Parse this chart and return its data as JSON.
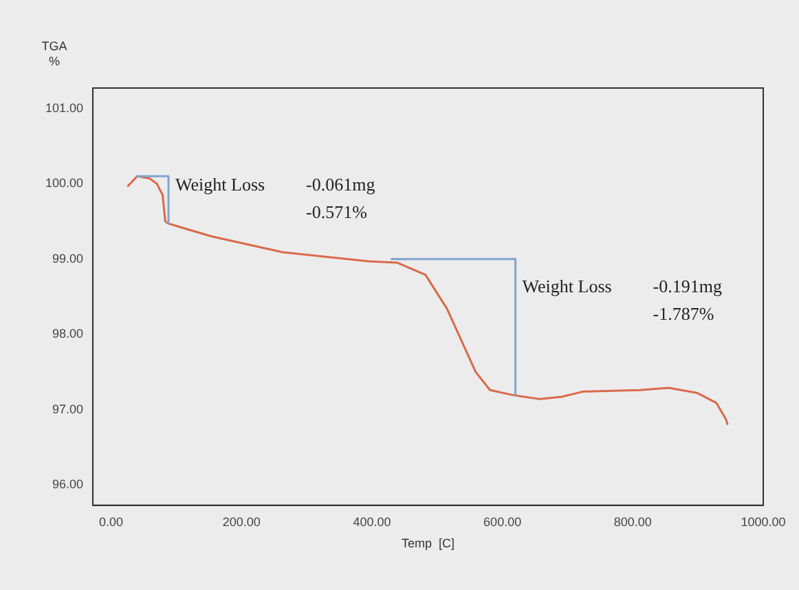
{
  "chart_data": {
    "type": "line",
    "xlabel": "Temp  [C]",
    "ylabel": "TGA\n%",
    "xlim": [
      -28,
      1000
    ],
    "ylim": [
      95.73,
      101.27
    ],
    "xticks": [
      {
        "value": 0,
        "label": "0.00"
      },
      {
        "value": 200,
        "label": "200.00"
      },
      {
        "value": 400,
        "label": "400.00"
      },
      {
        "value": 600,
        "label": "600.00"
      },
      {
        "value": 800,
        "label": "800.00"
      },
      {
        "value": 1000,
        "label": "1000.00"
      }
    ],
    "yticks": [
      {
        "value": 96,
        "label": "96.00"
      },
      {
        "value": 97,
        "label": "97.00"
      },
      {
        "value": 98,
        "label": "98.00"
      },
      {
        "value": 99,
        "label": "99.00"
      },
      {
        "value": 100,
        "label": "100.00"
      },
      {
        "value": 101,
        "label": "101.00"
      }
    ],
    "grid": false,
    "legend": false,
    "marker": "none",
    "line_style": "solid",
    "series": [
      {
        "color": "#7fa3cc",
        "x": [
          40,
          88,
          88
        ],
        "values": [
          100.1,
          100.1,
          99.47
        ]
      },
      {
        "color": "#7fa3cc",
        "x": [
          430,
          620,
          620
        ],
        "values": [
          99.0,
          99.0,
          97.19
        ]
      },
      {
        "color": "#d9694a",
        "x": [
          26,
          40,
          59,
          70,
          79,
          83,
          88,
          154,
          263,
          395,
          439,
          482,
          515,
          537,
          559,
          581,
          618,
          658,
          691,
          724,
          811,
          855,
          899,
          928,
          943,
          945
        ],
        "values": [
          99.97,
          100.1,
          100.07,
          100.0,
          99.85,
          99.5,
          99.47,
          99.3,
          99.09,
          98.97,
          98.95,
          98.79,
          98.34,
          97.92,
          97.5,
          97.26,
          97.19,
          97.14,
          97.17,
          97.24,
          97.26,
          97.29,
          97.22,
          97.09,
          96.87,
          96.81
        ]
      }
    ],
    "annotations": [
      "Weight Loss",
      "-0.061mg",
      "-0.571%",
      "Weight Loss",
      "-0.191mg",
      "-1.787%"
    ]
  }
}
